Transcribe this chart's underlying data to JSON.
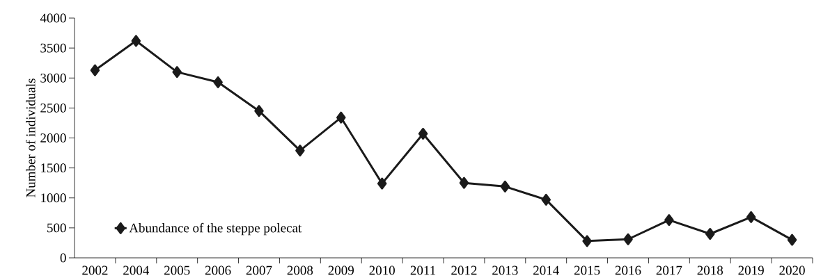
{
  "chart_data": {
    "type": "line",
    "ylabel": "Number of individuals",
    "categories": [
      "2002",
      "2004",
      "2005",
      "2006",
      "2007",
      "2008",
      "2009",
      "2010",
      "2011",
      "2012",
      "2013",
      "2014",
      "2015",
      "2016",
      "2017",
      "2018",
      "2019",
      "2020"
    ],
    "series": [
      {
        "name": "Abundance of the steppe polecat",
        "color": "#1a1a1a",
        "values": [
          3130,
          3620,
          3100,
          2930,
          2450,
          1790,
          2340,
          1240,
          2070,
          1250,
          1190,
          970,
          280,
          310,
          630,
          400,
          680,
          300
        ]
      }
    ],
    "ylim": [
      0,
      4000
    ],
    "yticks": [
      0,
      500,
      1000,
      1500,
      2000,
      2500,
      3000,
      3500,
      4000
    ],
    "legend": "bottom left",
    "marker": "diamond",
    "line_style": "solid",
    "grid": false
  }
}
